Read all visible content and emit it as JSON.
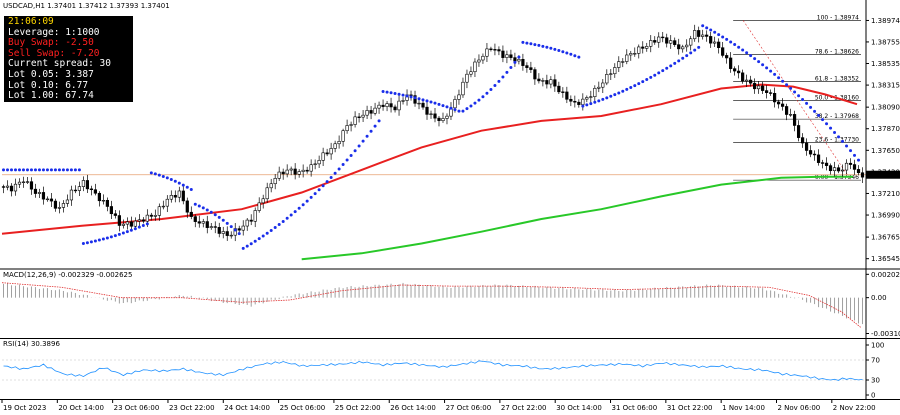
{
  "header": {
    "title": "USDCAD,H1  1.37401 1.37412 1.37393 1.37401"
  },
  "info": {
    "time": "21:06:09",
    "lines": [
      {
        "text": "Leverage: 1:1000",
        "color": "#ffffff"
      },
      {
        "text": "Buy Swap: -2.50",
        "color": "#ff2020"
      },
      {
        "text": "Sell Swap: -7.20",
        "color": "#ff2020"
      },
      {
        "text": "Current spread: 30",
        "color": "#ffffff"
      },
      {
        "text": "Lot 0.05: 3.387",
        "color": "#ffffff"
      },
      {
        "text": "Lot 0.10: 6.77",
        "color": "#ffffff"
      },
      {
        "text": "Lot 1.00: 67.74",
        "color": "#ffffff"
      }
    ],
    "time_color": "#ffd700"
  },
  "chart_data": [
    {
      "type": "candlestick",
      "symbol": "USDCAD",
      "timeframe": "H1",
      "ylim": [
        1.3645,
        1.3905
      ],
      "y_ticks": [
        "1.38974",
        "1.38755",
        "1.38535",
        "1.38315",
        "1.38090",
        "1.37870",
        "1.37650",
        "1.37430",
        "1.37210",
        "1.36990",
        "1.36765",
        "1.36545"
      ],
      "y_tick_values": [
        1.38974,
        1.38755,
        1.38535,
        1.38315,
        1.3809,
        1.3787,
        1.3765,
        1.3743,
        1.3721,
        1.3699,
        1.36765,
        1.36545
      ],
      "current_price": "1.37401",
      "x_ticks": [
        "19 Oct 2023",
        "20 Oct 14:00",
        "23 Oct 06:00",
        "23 Oct 22:00",
        "24 Oct 14:00",
        "25 Oct 06:00",
        "25 Oct 22:00",
        "26 Oct 14:00",
        "27 Oct 06:00",
        "27 Oct 22:00",
        "30 Oct 14:00",
        "31 Oct 06:00",
        "31 Oct 22:00",
        "1 Nov 14:00",
        "2 Nov 06:00",
        "2 Nov 22:00"
      ],
      "close_path": [
        [
          0,
          1.3728
        ],
        [
          3,
          1.3726
        ],
        [
          6,
          1.3735
        ],
        [
          9,
          1.3722
        ],
        [
          12,
          1.3715
        ],
        [
          15,
          1.3705
        ],
        [
          18,
          1.3722
        ],
        [
          21,
          1.3732
        ],
        [
          24,
          1.372
        ],
        [
          27,
          1.3708
        ],
        [
          30,
          1.369
        ],
        [
          33,
          1.369
        ],
        [
          36,
          1.3695
        ],
        [
          39,
          1.37
        ],
        [
          42,
          1.3715
        ],
        [
          45,
          1.3722
        ],
        [
          48,
          1.3695
        ],
        [
          51,
          1.369
        ],
        [
          54,
          1.3685
        ],
        [
          57,
          1.3678
        ],
        [
          60,
          1.3685
        ],
        [
          63,
          1.3695
        ],
        [
          66,
          1.3718
        ],
        [
          69,
          1.3738
        ],
        [
          72,
          1.3745
        ],
        [
          75,
          1.3742
        ],
        [
          78,
          1.3748
        ],
        [
          81,
          1.376
        ],
        [
          84,
          1.377
        ],
        [
          87,
          1.379
        ],
        [
          90,
          1.38
        ],
        [
          93,
          1.3805
        ],
        [
          96,
          1.3812
        ],
        [
          99,
          1.3808
        ],
        [
          102,
          1.3822
        ],
        [
          105,
          1.3812
        ],
        [
          108,
          1.38
        ],
        [
          111,
          1.3795
        ],
        [
          114,
          1.3815
        ],
        [
          117,
          1.3842
        ],
        [
          120,
          1.3858
        ],
        [
          123,
          1.387
        ],
        [
          126,
          1.3862
        ],
        [
          129,
          1.3858
        ],
        [
          132,
          1.385
        ],
        [
          135,
          1.3835
        ],
        [
          138,
          1.3835
        ],
        [
          141,
          1.3822
        ],
        [
          144,
          1.3812
        ],
        [
          147,
          1.3818
        ],
        [
          150,
          1.383
        ],
        [
          153,
          1.3845
        ],
        [
          156,
          1.3858
        ],
        [
          159,
          1.3866
        ],
        [
          162,
          1.3872
        ],
        [
          165,
          1.388
        ],
        [
          168,
          1.3875
        ],
        [
          171,
          1.3868
        ],
        [
          174,
          1.3885
        ],
        [
          177,
          1.388
        ],
        [
          180,
          1.387
        ],
        [
          183,
          1.385
        ],
        [
          186,
          1.3838
        ],
        [
          189,
          1.383
        ],
        [
          192,
          1.3825
        ],
        [
          195,
          1.3812
        ],
        [
          198,
          1.38
        ],
        [
          201,
          1.377
        ],
        [
          204,
          1.3758
        ],
        [
          207,
          1.3748
        ],
        [
          210,
          1.3744
        ],
        [
          213,
          1.3752
        ],
        [
          215,
          1.374
        ]
      ],
      "ma_fast": [
        [
          0,
          1.368
        ],
        [
          20,
          1.3688
        ],
        [
          40,
          1.3695
        ],
        [
          60,
          1.3705
        ],
        [
          75,
          1.3722
        ],
        [
          90,
          1.3745
        ],
        [
          105,
          1.3768
        ],
        [
          120,
          1.3785
        ],
        [
          135,
          1.3795
        ],
        [
          150,
          1.38
        ],
        [
          165,
          1.3812
        ],
        [
          180,
          1.3828
        ],
        [
          190,
          1.3832
        ],
        [
          198,
          1.383
        ],
        [
          206,
          1.3822
        ],
        [
          214,
          1.3812
        ]
      ],
      "ma_slow": [
        [
          75,
          1.3654
        ],
        [
          90,
          1.366
        ],
        [
          105,
          1.367
        ],
        [
          120,
          1.3682
        ],
        [
          135,
          1.3695
        ],
        [
          150,
          1.3705
        ],
        [
          165,
          1.3718
        ],
        [
          180,
          1.373
        ],
        [
          195,
          1.3737
        ],
        [
          205,
          1.3738
        ],
        [
          213,
          1.3738
        ]
      ],
      "psar_segments": [
        {
          "x": [
            0,
            20
          ],
          "start": 1.3745,
          "end": 1.3745
        },
        {
          "x": [
            20,
            37
          ],
          "start": 1.367,
          "end": 1.369
        },
        {
          "x": [
            37,
            48
          ],
          "start": 1.3742,
          "end": 1.3725
        },
        {
          "x": [
            48,
            60
          ],
          "start": 1.371,
          "end": 1.368
        },
        {
          "x": [
            60,
            95
          ],
          "start": 1.3665,
          "end": 1.3795
        },
        {
          "x": [
            95,
            115
          ],
          "start": 1.3825,
          "end": 1.3805
        },
        {
          "x": [
            115,
            130
          ],
          "start": 1.3805,
          "end": 1.386
        },
        {
          "x": [
            130,
            145
          ],
          "start": 1.3875,
          "end": 1.386
        },
        {
          "x": [
            145,
            175
          ],
          "start": 1.381,
          "end": 1.387
        },
        {
          "x": [
            175,
            215
          ],
          "start": 1.3892,
          "end": 1.3755
        }
      ],
      "fibonacci": [
        {
          "label": "100 - 1.38974",
          "level": 1.38974
        },
        {
          "label": "78.6 - 1.38626",
          "level": 1.38626
        },
        {
          "label": "61.8 - 1.38352",
          "level": 1.38352
        },
        {
          "label": "50.0 - 1.38160",
          "level": 1.3816
        },
        {
          "label": "38.2 - 1.37968",
          "level": 1.37968
        },
        {
          "label": "23.6 - 1.37730",
          "level": 1.3773
        },
        {
          "label": "0.00 - 1.37346",
          "level": 1.37346
        }
      ],
      "colors": {
        "fast_ma": "#e82020",
        "slow_ma": "#28c828",
        "psar": "#1a2eea",
        "fib": "#000000",
        "candles": "#000000",
        "price_line": "#e8a070"
      }
    },
    {
      "type": "bar",
      "name": "MACD(12,26,9) -0.002329 -0.002625",
      "ylim": [
        -0.0035,
        0.0024
      ],
      "y_ticks": [
        "0.002026",
        "0.00",
        "-0.003109"
      ],
      "y_tick_values": [
        0.002026,
        0,
        -0.003109
      ],
      "values_path": [
        [
          0,
          0.0012
        ],
        [
          15,
          0.0006
        ],
        [
          30,
          -0.0005
        ],
        [
          45,
          0.0002
        ],
        [
          55,
          -0.0004
        ],
        [
          62,
          -0.0007
        ],
        [
          72,
          0.0002
        ],
        [
          85,
          0.0009
        ],
        [
          100,
          0.0012
        ],
        [
          112,
          0.0009
        ],
        [
          125,
          0.0011
        ],
        [
          140,
          0.0008
        ],
        [
          155,
          0.0006
        ],
        [
          168,
          0.0009
        ],
        [
          178,
          0.0011
        ],
        [
          190,
          0.0008
        ],
        [
          200,
          -0.0002
        ],
        [
          208,
          -0.0013
        ],
        [
          215,
          -0.0023
        ]
      ],
      "signal_path": [
        [
          0,
          0.0013
        ],
        [
          15,
          0.0009
        ],
        [
          30,
          0.0
        ],
        [
          45,
          0.0
        ],
        [
          60,
          -0.0004
        ],
        [
          72,
          -0.0002
        ],
        [
          85,
          0.0006
        ],
        [
          100,
          0.0011
        ],
        [
          112,
          0.001
        ],
        [
          125,
          0.001
        ],
        [
          140,
          0.0009
        ],
        [
          155,
          0.0007
        ],
        [
          168,
          0.0008
        ],
        [
          180,
          0.001
        ],
        [
          192,
          0.0009
        ],
        [
          202,
          0.0002
        ],
        [
          210,
          -0.0012
        ],
        [
          215,
          -0.0026
        ]
      ],
      "colors": {
        "histogram": "#a0a0a0",
        "signal": "#e03030"
      }
    },
    {
      "type": "line",
      "name": "RSI(14) 30.3896",
      "ylim": [
        0,
        100
      ],
      "y_ticks": [
        "100",
        "70",
        "30",
        "0"
      ],
      "y_tick_values": [
        100,
        70,
        30,
        0
      ],
      "values_path": [
        [
          0,
          58
        ],
        [
          5,
          52
        ],
        [
          10,
          60
        ],
        [
          15,
          42
        ],
        [
          20,
          38
        ],
        [
          25,
          55
        ],
        [
          30,
          40
        ],
        [
          35,
          50
        ],
        [
          40,
          48
        ],
        [
          45,
          52
        ],
        [
          50,
          44
        ],
        [
          55,
          40
        ],
        [
          60,
          52
        ],
        [
          65,
          62
        ],
        [
          70,
          66
        ],
        [
          75,
          58
        ],
        [
          80,
          60
        ],
        [
          85,
          62
        ],
        [
          90,
          66
        ],
        [
          95,
          60
        ],
        [
          100,
          64
        ],
        [
          105,
          60
        ],
        [
          110,
          56
        ],
        [
          115,
          62
        ],
        [
          120,
          68
        ],
        [
          125,
          60
        ],
        [
          130,
          58
        ],
        [
          135,
          52
        ],
        [
          140,
          54
        ],
        [
          145,
          58
        ],
        [
          150,
          60
        ],
        [
          155,
          62
        ],
        [
          160,
          58
        ],
        [
          165,
          64
        ],
        [
          170,
          60
        ],
        [
          175,
          56
        ],
        [
          180,
          58
        ],
        [
          185,
          52
        ],
        [
          190,
          50
        ],
        [
          195,
          42
        ],
        [
          200,
          38
        ],
        [
          205,
          32
        ],
        [
          208,
          30
        ],
        [
          211,
          33
        ],
        [
          215,
          30
        ]
      ],
      "colors": {
        "line": "#1e90ff"
      }
    }
  ]
}
